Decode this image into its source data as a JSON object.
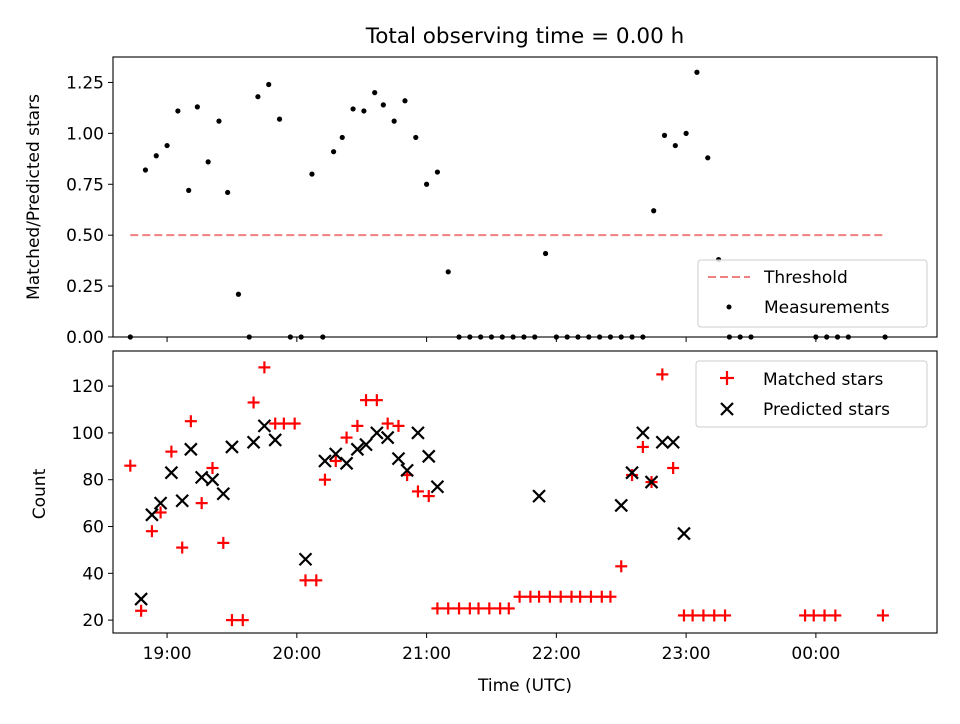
{
  "figure_title": "Total observing time = 0.00 h",
  "colors": {
    "threshold": "#f08080",
    "measurements": "#000000",
    "matched": "#ff0000",
    "predicted": "#000000"
  },
  "chart_data": [
    {
      "type": "scatter",
      "panel": "top",
      "ylabel": "Matched/Predicted stars",
      "ylim": [
        0,
        1.375
      ],
      "yticks": [
        "0.00",
        "0.25",
        "0.50",
        "0.75",
        "1.00",
        "1.25"
      ],
      "xlim": [
        "18:35",
        "00:56"
      ],
      "legend": {
        "position": "lower-right",
        "entries": [
          "Threshold",
          "Measurements"
        ]
      },
      "threshold": {
        "name": "Threshold",
        "y": 0.5,
        "x_start": "18:43",
        "x_end": "00:32"
      },
      "series": [
        {
          "name": "Measurements",
          "points": [
            [
              "18:43",
              0.0
            ],
            [
              "18:50",
              0.82
            ],
            [
              "18:55",
              0.89
            ],
            [
              "19:00",
              0.94
            ],
            [
              "19:05",
              1.11
            ],
            [
              "19:10",
              0.72
            ],
            [
              "19:14",
              1.13
            ],
            [
              "19:19",
              0.86
            ],
            [
              "19:24",
              1.06
            ],
            [
              "19:28",
              0.71
            ],
            [
              "19:33",
              0.21
            ],
            [
              "19:38",
              0.0
            ],
            [
              "19:42",
              1.18
            ],
            [
              "19:47",
              1.24
            ],
            [
              "19:52",
              1.07
            ],
            [
              "19:57",
              0.0
            ],
            [
              "20:02",
              0.0
            ],
            [
              "20:07",
              0.8
            ],
            [
              "20:12",
              0.0
            ],
            [
              "20:17",
              0.91
            ],
            [
              "20:21",
              0.98
            ],
            [
              "20:26",
              1.12
            ],
            [
              "20:31",
              1.11
            ],
            [
              "20:36",
              1.2
            ],
            [
              "20:40",
              1.14
            ],
            [
              "20:45",
              1.06
            ],
            [
              "20:50",
              1.16
            ],
            [
              "20:55",
              0.98
            ],
            [
              "21:00",
              0.75
            ],
            [
              "21:05",
              0.81
            ],
            [
              "21:10",
              0.32
            ],
            [
              "21:15",
              0.0
            ],
            [
              "21:20",
              0.0
            ],
            [
              "21:25",
              0.0
            ],
            [
              "21:30",
              0.0
            ],
            [
              "21:35",
              0.0
            ],
            [
              "21:40",
              0.0
            ],
            [
              "21:45",
              0.0
            ],
            [
              "21:50",
              0.0
            ],
            [
              "21:55",
              0.41
            ],
            [
              "22:00",
              0.0
            ],
            [
              "22:05",
              0.0
            ],
            [
              "22:10",
              0.0
            ],
            [
              "22:15",
              0.0
            ],
            [
              "22:20",
              0.0
            ],
            [
              "22:25",
              0.0
            ],
            [
              "22:30",
              0.0
            ],
            [
              "22:35",
              0.0
            ],
            [
              "22:40",
              0.0
            ],
            [
              "22:45",
              0.62
            ],
            [
              "22:50",
              0.99
            ],
            [
              "22:55",
              0.94
            ],
            [
              "23:00",
              1.0
            ],
            [
              "23:05",
              1.3
            ],
            [
              "23:10",
              0.88
            ],
            [
              "23:15",
              0.38
            ],
            [
              "23:20",
              0.0
            ],
            [
              "23:25",
              0.0
            ],
            [
              "23:30",
              0.0
            ],
            [
              "00:00",
              0.0
            ],
            [
              "00:05",
              0.0
            ],
            [
              "00:10",
              0.0
            ],
            [
              "00:15",
              0.0
            ],
            [
              "00:32",
              0.0
            ]
          ]
        }
      ]
    },
    {
      "type": "scatter",
      "panel": "bottom",
      "ylabel": "Count",
      "xlabel": "Time (UTC)",
      "ylim": [
        14.5,
        135
      ],
      "yticks": [
        "20",
        "40",
        "60",
        "80",
        "100",
        "120"
      ],
      "xlim": [
        "18:35",
        "00:56"
      ],
      "xticks": [
        "19:00",
        "20:00",
        "21:00",
        "22:00",
        "23:00",
        "00:00"
      ],
      "legend": {
        "position": "upper-right",
        "entries": [
          "Matched stars",
          "Predicted stars"
        ]
      },
      "series": [
        {
          "name": "Matched stars",
          "points": [
            [
              "18:43",
              86
            ],
            [
              "18:48",
              24
            ],
            [
              "18:53",
              58
            ],
            [
              "18:57",
              66
            ],
            [
              "19:02",
              92
            ],
            [
              "19:07",
              51
            ],
            [
              "19:11",
              105
            ],
            [
              "19:16",
              70
            ],
            [
              "19:21",
              85
            ],
            [
              "19:26",
              53
            ],
            [
              "19:30",
              20
            ],
            [
              "19:35",
              20
            ],
            [
              "19:40",
              113
            ],
            [
              "19:45",
              128
            ],
            [
              "19:50",
              104
            ],
            [
              "19:54",
              104
            ],
            [
              "19:59",
              104
            ],
            [
              "20:04",
              37
            ],
            [
              "20:09",
              37
            ],
            [
              "20:13",
              80
            ],
            [
              "20:18",
              88
            ],
            [
              "20:23",
              98
            ],
            [
              "20:28",
              103
            ],
            [
              "20:32",
              114
            ],
            [
              "20:37",
              114
            ],
            [
              "20:42",
              104
            ],
            [
              "20:47",
              103
            ],
            [
              "20:51",
              82
            ],
            [
              "20:56",
              75
            ],
            [
              "21:01",
              73
            ],
            [
              "21:05",
              25
            ],
            [
              "21:10",
              25
            ],
            [
              "21:15",
              25
            ],
            [
              "21:20",
              25
            ],
            [
              "21:24",
              25
            ],
            [
              "21:29",
              25
            ],
            [
              "21:34",
              25
            ],
            [
              "21:38",
              25
            ],
            [
              "21:43",
              30
            ],
            [
              "21:48",
              30
            ],
            [
              "21:52",
              30
            ],
            [
              "21:57",
              30
            ],
            [
              "22:02",
              30
            ],
            [
              "22:07",
              30
            ],
            [
              "22:11",
              30
            ],
            [
              "22:16",
              30
            ],
            [
              "22:21",
              30
            ],
            [
              "22:25",
              30
            ],
            [
              "22:30",
              43
            ],
            [
              "22:35",
              82
            ],
            [
              "22:40",
              94
            ],
            [
              "22:44",
              79
            ],
            [
              "22:49",
              125
            ],
            [
              "22:54",
              85
            ],
            [
              "22:59",
              22
            ],
            [
              "23:03",
              22
            ],
            [
              "23:08",
              22
            ],
            [
              "23:13",
              22
            ],
            [
              "23:18",
              22
            ],
            [
              "23:55",
              22
            ],
            [
              "23:59",
              22
            ],
            [
              "00:04",
              22
            ],
            [
              "00:09",
              22
            ],
            [
              "00:31",
              22
            ]
          ]
        },
        {
          "name": "Predicted stars",
          "points": [
            [
              "18:48",
              29
            ],
            [
              "18:53",
              65
            ],
            [
              "18:57",
              70
            ],
            [
              "19:02",
              83
            ],
            [
              "19:07",
              71
            ],
            [
              "19:11",
              93
            ],
            [
              "19:16",
              81
            ],
            [
              "19:21",
              80
            ],
            [
              "19:26",
              74
            ],
            [
              "19:30",
              94
            ],
            [
              "19:40",
              96
            ],
            [
              "19:45",
              103
            ],
            [
              "19:50",
              97
            ],
            [
              "20:04",
              46
            ],
            [
              "20:13",
              88
            ],
            [
              "20:18",
              91
            ],
            [
              "20:23",
              87
            ],
            [
              "20:28",
              93
            ],
            [
              "20:32",
              95
            ],
            [
              "20:37",
              100
            ],
            [
              "20:42",
              98
            ],
            [
              "20:47",
              89
            ],
            [
              "20:51",
              84
            ],
            [
              "20:56",
              100
            ],
            [
              "21:01",
              90
            ],
            [
              "21:05",
              77
            ],
            [
              "21:52",
              73
            ],
            [
              "22:30",
              69
            ],
            [
              "22:35",
              83
            ],
            [
              "22:40",
              100
            ],
            [
              "22:44",
              79
            ],
            [
              "22:49",
              96
            ],
            [
              "22:54",
              96
            ],
            [
              "22:59",
              57
            ]
          ]
        }
      ]
    }
  ]
}
